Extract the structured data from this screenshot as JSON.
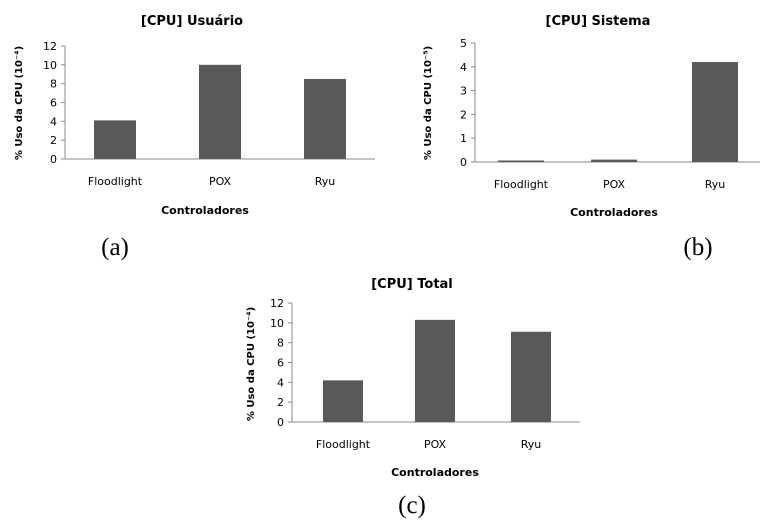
{
  "chart_data": [
    {
      "type": "bar",
      "title": "[CPU] Usuário",
      "xlabel": "Controladores",
      "ylabel": "% Uso da  CPU (10⁻⁴)",
      "panel_label": "(a)",
      "categories": [
        "Floodlight",
        "POX",
        "Ryu"
      ],
      "values": [
        4.1,
        10.0,
        8.5
      ],
      "ylim": [
        0,
        12
      ],
      "yticks": [
        "0",
        "2",
        "4",
        "6",
        "8",
        "10",
        "12"
      ],
      "grid": false,
      "legend": "none",
      "bar_color": "#595959"
    },
    {
      "type": "bar",
      "title": "[CPU] Sistema",
      "xlabel": "Controladores",
      "ylabel": "% Uso da CPU (10⁻⁵)",
      "panel_label": "(b)",
      "categories": [
        "Floodlight",
        "POX",
        "Ryu"
      ],
      "values": [
        0.03,
        0.1,
        4.2
      ],
      "ylim": [
        0,
        5
      ],
      "yticks": [
        "0",
        "1",
        "2",
        "3",
        "4",
        "5"
      ],
      "grid": false,
      "legend": "none",
      "bar_color": "#595959"
    },
    {
      "type": "bar",
      "title": "[CPU] Total",
      "xlabel": "Controladores",
      "ylabel": "% Uso da CPU (10⁻⁴)",
      "panel_label": "(c)",
      "categories": [
        "Floodlight",
        "POX",
        "Ryu"
      ],
      "values": [
        4.2,
        10.3,
        9.1
      ],
      "ylim": [
        0,
        12
      ],
      "yticks": [
        "0",
        "2",
        "4",
        "6",
        "8",
        "10",
        "12"
      ],
      "grid": false,
      "legend": "none",
      "bar_color": "#595959"
    }
  ]
}
